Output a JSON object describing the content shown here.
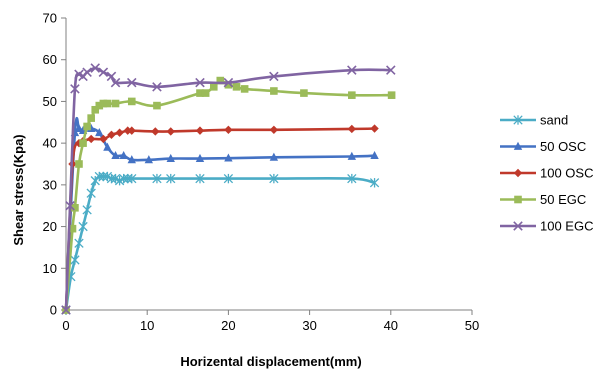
{
  "chart_data": {
    "type": "line",
    "title": "",
    "xlabel": "Horizental displacement(mm)",
    "ylabel": "Shear stress(Kpa)",
    "xlim": [
      0,
      50
    ],
    "ylim": [
      0,
      70
    ],
    "xticks": [
      0,
      10,
      20,
      30,
      40,
      50
    ],
    "yticks": [
      0,
      10,
      20,
      30,
      40,
      50,
      60,
      70
    ],
    "grid": false,
    "legend_position": "right",
    "series": [
      {
        "name": "sand",
        "color": "#4bacc6",
        "marker": "asterisk",
        "x": [
          0,
          0.6,
          1.1,
          1.6,
          2.1,
          2.6,
          3.1,
          3.6,
          4.1,
          4.6,
          5.1,
          5.6,
          6.1,
          6.6,
          7.1,
          7.6,
          8.1,
          11.2,
          12.9,
          16.5,
          20,
          25.6,
          35.2,
          38
        ],
        "y": [
          0,
          8,
          12,
          16,
          20,
          24,
          28,
          31,
          32,
          32,
          32,
          31.5,
          31.5,
          31,
          31.5,
          31.5,
          31.5,
          31.5,
          31.5,
          31.5,
          31.5,
          31.5,
          31.5,
          30.5
        ]
      },
      {
        "name": "50 OSC",
        "color": "#4472c4",
        "marker": "triangle",
        "x": [
          0,
          1.1,
          1.6,
          2.1,
          3.1,
          4.1,
          5.1,
          6.1,
          7.1,
          8.1,
          10.2,
          12.9,
          16.5,
          20,
          25.6,
          35.2,
          38
        ],
        "y": [
          0,
          42.5,
          43.5,
          43,
          43.5,
          42.5,
          39,
          37,
          37,
          36,
          36,
          36.3,
          36.3,
          36.4,
          36.6,
          36.8,
          37
        ]
      },
      {
        "name": "100 OSC",
        "color": "#c0392b",
        "marker": "diamond",
        "x": [
          0,
          0.8,
          1.6,
          2.1,
          3.1,
          4.6,
          5.6,
          6.6,
          7.6,
          8.1,
          11,
          12.9,
          16.5,
          20,
          25.6,
          35.2,
          38
        ],
        "y": [
          0,
          35,
          40,
          40.5,
          41,
          41,
          42,
          42.5,
          43,
          43,
          42.8,
          42.8,
          43,
          43.2,
          43.2,
          43.4,
          43.5
        ]
      },
      {
        "name": "50 EGC",
        "color": "#9bbb59",
        "marker": "square",
        "x": [
          0,
          0.8,
          1.1,
          1.6,
          2.1,
          2.6,
          3.1,
          3.6,
          4.1,
          4.6,
          5.1,
          6.1,
          8.1,
          11.2,
          16.5,
          17.2,
          18.2,
          19,
          20,
          21,
          22,
          25.6,
          29.3,
          35.2,
          40.1
        ],
        "y": [
          0,
          19.5,
          24.5,
          35,
          40,
          44,
          46,
          48,
          49,
          49.5,
          49.5,
          49.5,
          50,
          49,
          52,
          52,
          53.5,
          55,
          54,
          53.5,
          53,
          52.5,
          52,
          51.5,
          51.5
        ]
      },
      {
        "name": "100 EGC",
        "color": "#8064a2",
        "marker": "x",
        "x": [
          0,
          0.5,
          1.1,
          1.6,
          2.1,
          2.6,
          3.6,
          4.6,
          5.6,
          6.1,
          8.1,
          11.2,
          16.5,
          20,
          25.6,
          35.2,
          40
        ],
        "y": [
          0,
          25,
          53,
          56.5,
          56,
          57,
          58,
          57,
          56,
          54.5,
          54.5,
          53.5,
          54.5,
          54.5,
          56,
          57.5,
          57.5
        ]
      }
    ]
  }
}
